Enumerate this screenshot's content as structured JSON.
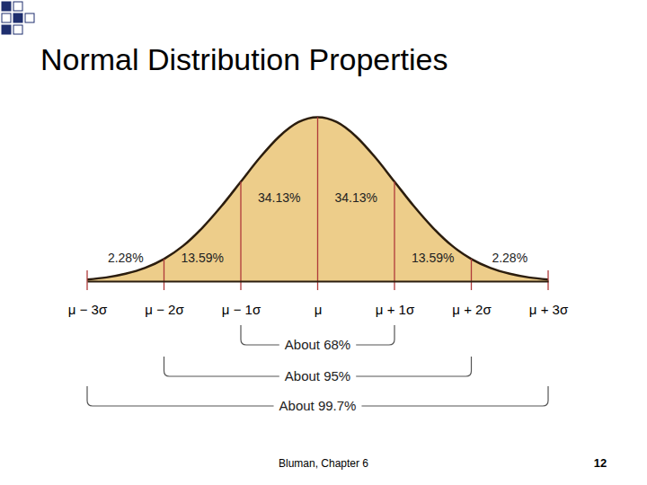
{
  "chart_data": {
    "type": "area",
    "title": "Normal Distribution Properties",
    "x": [
      -3,
      -2.75,
      -2.5,
      -2.25,
      -2,
      -1.75,
      -1.5,
      -1.25,
      -1,
      -0.75,
      -0.5,
      -0.25,
      0,
      0.25,
      0.5,
      0.75,
      1,
      1.25,
      1.5,
      1.75,
      2,
      2.25,
      2.5,
      2.75,
      3
    ],
    "values": [
      0.004,
      0.009,
      0.018,
      0.032,
      0.054,
      0.086,
      0.13,
      0.183,
      0.242,
      0.301,
      0.352,
      0.387,
      0.399,
      0.387,
      0.352,
      0.301,
      0.242,
      0.183,
      0.13,
      0.086,
      0.054,
      0.032,
      0.018,
      0.009,
      0.004
    ],
    "color": "#edcd8a",
    "xlim": [
      -3,
      3
    ],
    "xticks": [
      {
        "value": -3,
        "label": "μ − 3σ"
      },
      {
        "value": -2,
        "label": "μ − 2σ"
      },
      {
        "value": -1,
        "label": "μ − 1σ"
      },
      {
        "value": 0,
        "label": "μ"
      },
      {
        "value": 1,
        "label": "μ + 1σ"
      },
      {
        "value": 2,
        "label": "μ + 2σ"
      },
      {
        "value": 3,
        "label": "μ + 3σ"
      }
    ],
    "ylim": [
      0,
      0.41
    ],
    "tick_labels": "x",
    "data_labels": true,
    "regions": {
      "bounds": [
        -3,
        -2,
        -1,
        0,
        1,
        2,
        3
      ],
      "values": [
        2.28,
        13.59,
        34.13,
        34.13,
        13.59,
        2.28
      ],
      "value_labels": [
        "2.28%",
        "13.59%",
        "34.13%",
        "34.13%",
        "13.59%",
        "2.28%"
      ]
    },
    "brackets": [
      {
        "from": -1,
        "to": 1,
        "label": "About 68%"
      },
      {
        "from": -2,
        "to": 2,
        "label": "About 95%"
      },
      {
        "from": -3,
        "to": 3,
        "label": "About 99.7%"
      }
    ],
    "footer": "Bluman, Chapter 6",
    "page": 12
  }
}
